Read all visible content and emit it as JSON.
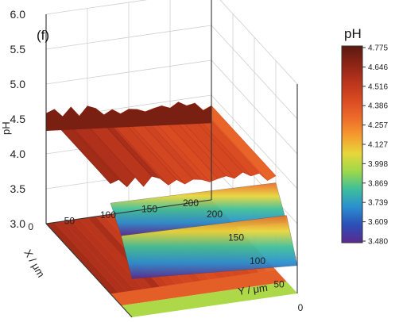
{
  "chart_data": {
    "type": "surface3d",
    "panel_label": "(f)",
    "z_label": "pH",
    "x_label": "X / μm",
    "y_label": "Y / μm",
    "z_ticks": [
      "3.0",
      "3.5",
      "4.0",
      "4.5",
      "5.0",
      "5.5",
      "6.0"
    ],
    "z_range": [
      3.0,
      6.0
    ],
    "x_ticks": [
      "0",
      "50",
      "100",
      "150",
      "200"
    ],
    "y_ticks": [
      "200",
      "150",
      "100",
      "50",
      "0"
    ],
    "x_range": [
      0,
      200
    ],
    "y_range": [
      0,
      200
    ],
    "colorbar": {
      "title": "pH",
      "ticks": [
        "4.775",
        "4.646",
        "4.516",
        "4.386",
        "4.257",
        "4.127",
        "3.998",
        "3.869",
        "3.739",
        "3.609",
        "3.480"
      ],
      "range": [
        3.48,
        4.775
      ],
      "colors": [
        "#5a1a10",
        "#8b2415",
        "#b8341c",
        "#d84a22",
        "#ec6a2a",
        "#f59a2f",
        "#e8d63a",
        "#9ed84a",
        "#3fbf9a",
        "#2a8fd0",
        "#2b4fb8",
        "#5b2a8f"
      ]
    },
    "grid": true,
    "y_samples": [
      200,
      190,
      180,
      170,
      160,
      150,
      140,
      130,
      120,
      110,
      100,
      90,
      80,
      70,
      60,
      50,
      40,
      30,
      20,
      10,
      0
    ],
    "ph_profile": [
      4.58,
      4.62,
      4.5,
      4.62,
      4.47,
      4.6,
      4.55,
      4.44,
      4.5,
      4.42,
      4.47,
      4.45,
      4.4,
      4.43,
      4.45,
      4.4,
      4.47,
      4.4,
      4.42,
      4.3,
      4.35
    ],
    "x_edge_drop": {
      "x": [
        150,
        175,
        200
      ],
      "ph": [
        4.3,
        4.0,
        3.55
      ]
    }
  }
}
